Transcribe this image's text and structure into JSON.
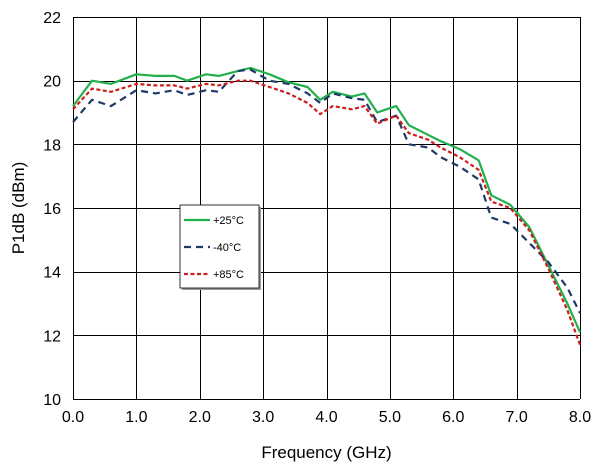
{
  "chart_data": {
    "type": "line",
    "title": "",
    "xlabel": "Frequency (GHz)",
    "ylabel": "P1dB (dBm)",
    "xlim": [
      0,
      8
    ],
    "ylim": [
      10,
      22
    ],
    "grid": true,
    "legend_position": "center-left",
    "x_ticks": [
      "0.0",
      "1.0",
      "2.0",
      "3.0",
      "4.0",
      "5.0",
      "6.0",
      "7.0",
      "8.0"
    ],
    "y_ticks": [
      "10",
      "12",
      "14",
      "16",
      "18",
      "20",
      "22"
    ],
    "series": [
      {
        "name": "+25°C",
        "color": "#22b04c",
        "dash": "solid",
        "x": [
          0.0,
          0.3,
          0.6,
          1.0,
          1.3,
          1.6,
          1.8,
          2.1,
          2.3,
          2.6,
          2.8,
          3.1,
          3.4,
          3.7,
          3.9,
          4.1,
          4.4,
          4.6,
          4.8,
          5.1,
          5.3,
          5.6,
          5.8,
          6.1,
          6.4,
          6.6,
          6.9,
          7.2,
          7.5,
          7.8,
          8.0
        ],
        "y": [
          19.2,
          20.0,
          19.9,
          20.2,
          20.15,
          20.15,
          20.0,
          20.2,
          20.15,
          20.3,
          20.4,
          20.2,
          19.95,
          19.8,
          19.4,
          19.65,
          19.5,
          19.6,
          19.0,
          19.2,
          18.6,
          18.3,
          18.1,
          17.85,
          17.5,
          16.4,
          16.1,
          15.4,
          14.2,
          13.0,
          12.1
        ]
      },
      {
        "name": "-40°C",
        "color": "#1f3a68",
        "dash": "dashed",
        "x": [
          0.0,
          0.3,
          0.6,
          1.0,
          1.3,
          1.6,
          1.8,
          2.1,
          2.3,
          2.6,
          2.8,
          3.1,
          3.4,
          3.7,
          3.9,
          4.1,
          4.4,
          4.6,
          4.8,
          5.1,
          5.3,
          5.6,
          5.8,
          6.1,
          6.4,
          6.6,
          6.9,
          7.2,
          7.5,
          7.8,
          8.0
        ],
        "y": [
          18.7,
          19.4,
          19.2,
          19.7,
          19.6,
          19.7,
          19.55,
          19.7,
          19.65,
          20.3,
          20.35,
          20.0,
          19.9,
          19.6,
          19.3,
          19.6,
          19.45,
          19.4,
          18.7,
          18.9,
          18.0,
          17.9,
          17.6,
          17.3,
          16.9,
          15.7,
          15.5,
          14.9,
          14.3,
          13.5,
          12.7
        ]
      },
      {
        "name": "+85°C",
        "color": "#cc1f1f",
        "dash": "dotted",
        "x": [
          0.0,
          0.3,
          0.6,
          1.0,
          1.3,
          1.6,
          1.8,
          2.1,
          2.3,
          2.6,
          2.8,
          3.1,
          3.4,
          3.7,
          3.9,
          4.1,
          4.4,
          4.6,
          4.8,
          5.1,
          5.3,
          5.6,
          5.8,
          6.1,
          6.4,
          6.6,
          6.9,
          7.2,
          7.5,
          7.8,
          8.0
        ],
        "y": [
          19.1,
          19.75,
          19.65,
          19.9,
          19.85,
          19.85,
          19.75,
          19.9,
          19.85,
          20.0,
          20.0,
          19.8,
          19.6,
          19.3,
          18.95,
          19.2,
          19.1,
          19.2,
          18.65,
          18.9,
          18.35,
          18.15,
          17.9,
          17.6,
          17.2,
          16.2,
          16.0,
          15.3,
          14.1,
          12.8,
          11.7
        ]
      }
    ]
  }
}
